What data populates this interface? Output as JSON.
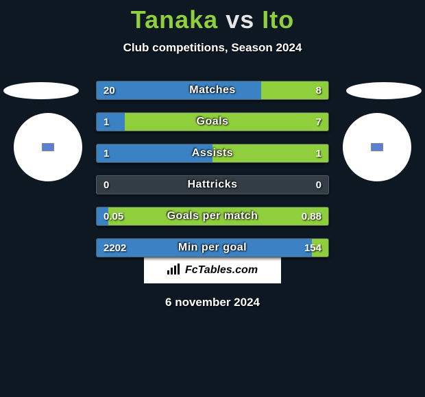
{
  "title": {
    "player1": "Tanaka",
    "vs": "vs",
    "player2": "Ito",
    "color1": "#8fcf3c",
    "color_vs": "#e6e6e6",
    "color2": "#8fcf3c"
  },
  "subtitle": "Club competitions, Season 2024",
  "colors": {
    "bg": "#0d1822",
    "bar_left": "#3a82c4",
    "bar_right": "#8fcf3c",
    "bar_empty": "#333d45",
    "text": "#ffffff"
  },
  "stats": [
    {
      "label": "Matches",
      "left_val": "20",
      "right_val": "8",
      "left_pct": 71,
      "right_pct": 29
    },
    {
      "label": "Goals",
      "left_val": "1",
      "right_val": "7",
      "left_pct": 12,
      "right_pct": 88
    },
    {
      "label": "Assists",
      "left_val": "1",
      "right_val": "1",
      "left_pct": 50,
      "right_pct": 50
    },
    {
      "label": "Hattricks",
      "left_val": "0",
      "right_val": "0",
      "left_pct": 0,
      "right_pct": 0
    },
    {
      "label": "Goals per match",
      "left_val": "0.05",
      "right_val": "0.88",
      "left_pct": 5,
      "right_pct": 95
    },
    {
      "label": "Min per goal",
      "left_val": "2202",
      "right_val": "154",
      "left_pct": 93,
      "right_pct": 7
    }
  ],
  "logo_text": "FcTables.com",
  "date": "6 november 2024"
}
